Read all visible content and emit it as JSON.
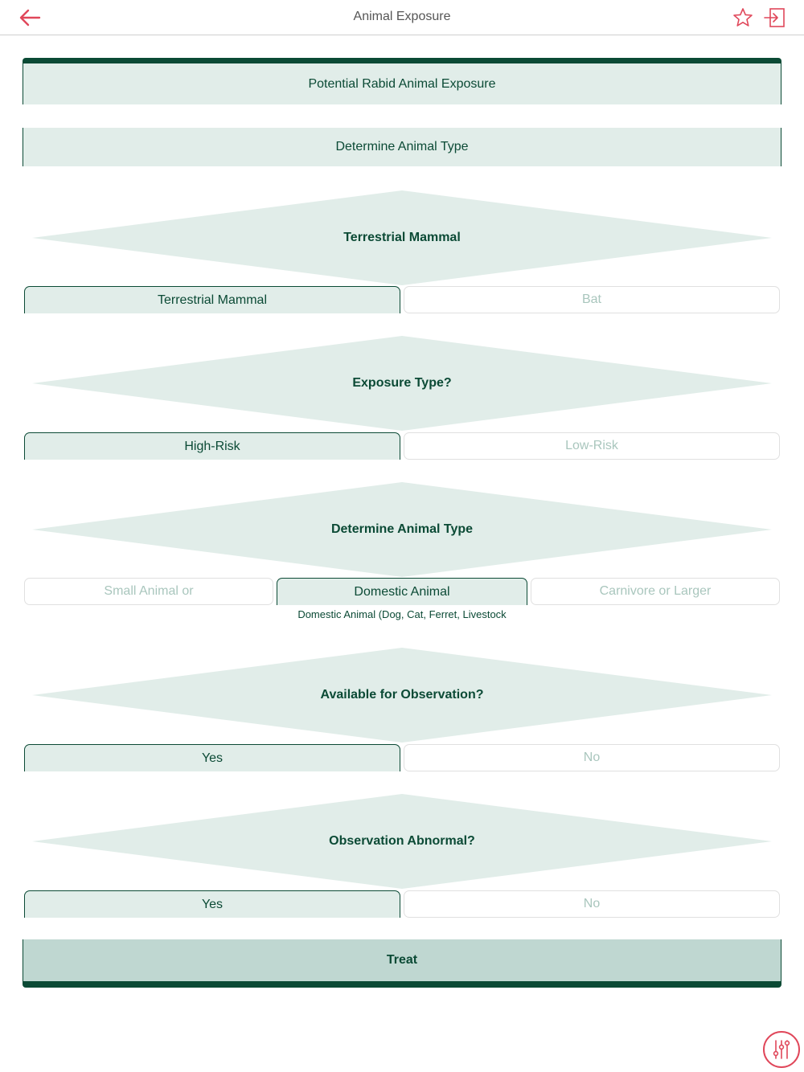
{
  "header": {
    "title": "Animal Exposure",
    "back_icon": "back-arrow-icon",
    "favorite_icon": "star-icon",
    "exit_icon": "exit-icon"
  },
  "flow": {
    "start": "Potential Rabid Animal Exposure",
    "step1": "Determine Animal Type",
    "q1": {
      "label": "Terrestrial Mammal",
      "options": [
        "Terrestrial Mammal",
        "Bat"
      ],
      "selected": 0
    },
    "q2": {
      "label": "Exposure Type?",
      "options": [
        "High-Risk",
        "Low-Risk"
      ],
      "selected": 0
    },
    "q3": {
      "label": "Determine Animal Type",
      "options": [
        "Small Animal or",
        "Domestic Animal",
        "Carnivore or Larger"
      ],
      "selected": 1,
      "note": "Domestic Animal (Dog, Cat, Ferret, Livestock"
    },
    "q4": {
      "label": "Available for Observation?",
      "options": [
        "Yes",
        "No"
      ],
      "selected": 0
    },
    "q5": {
      "label": "Observation Abnormal?",
      "options": [
        "Yes",
        "No"
      ],
      "selected": 0
    },
    "result": "Treat"
  },
  "colors": {
    "accent_red": "#e0475a",
    "primary_green": "#0b4a35",
    "panel_green": "#e1ede9",
    "result_green": "#bfd7d1",
    "muted_text": "#a9c6bd"
  },
  "tool_icon": "adjust-sliders-icon"
}
